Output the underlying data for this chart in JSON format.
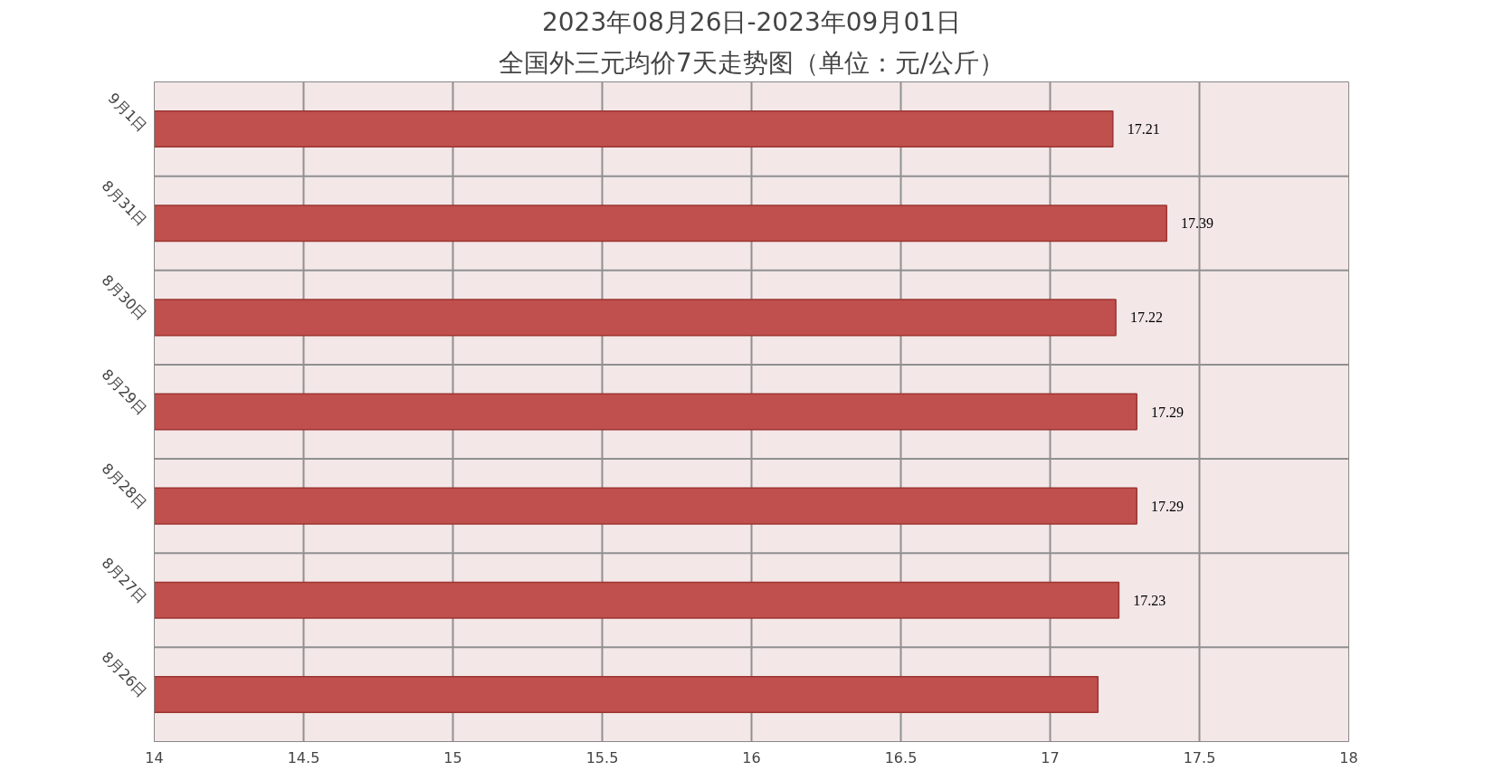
{
  "chart_data": {
    "type": "bar",
    "orientation": "horizontal",
    "title": "2023年08月26日-2023年09月01日",
    "subtitle": "全国外三元均价7天走势图（单位：元/公斤）",
    "categories": [
      "9月1日",
      "8月31日",
      "8月30日",
      "8月29日",
      "8月28日",
      "8月27日",
      "8月26日"
    ],
    "values": [
      17.21,
      17.39,
      17.22,
      17.29,
      17.29,
      17.23,
      17.16
    ],
    "value_labels": [
      "17.21",
      "17.39",
      "17.22",
      "17.29",
      "17.29",
      "17.23",
      null
    ],
    "color": "#c0504d",
    "xlim": [
      14,
      18
    ],
    "xticks": [
      14,
      14.5,
      15,
      15.5,
      16,
      16.5,
      17,
      17.5,
      18
    ],
    "grid": true
  }
}
